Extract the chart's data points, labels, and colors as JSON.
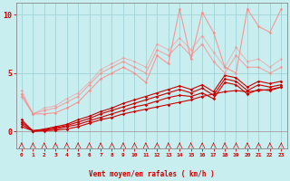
{
  "title": "",
  "xlabel": "Vent moyen/en rafales ( km/h )",
  "background_color": "#c8eef0",
  "grid_color": "#a0d4d8",
  "text_color": "#cc0000",
  "xlim": [
    -0.5,
    23.5
  ],
  "ylim": [
    -1.5,
    11
  ],
  "yticks": [
    0,
    5,
    10
  ],
  "xticks": [
    0,
    1,
    2,
    3,
    4,
    5,
    6,
    7,
    8,
    9,
    10,
    11,
    12,
    13,
    14,
    15,
    16,
    17,
    18,
    19,
    20,
    21,
    22,
    23
  ],
  "lines": [
    {
      "x": [
        0,
        1,
        2,
        3,
        4,
        5,
        6,
        7,
        8,
        9,
        10,
        11,
        12,
        13,
        14,
        15,
        16,
        17,
        18,
        19,
        20,
        21,
        22,
        23
      ],
      "y": [
        1.0,
        0.0,
        0.05,
        0.1,
        0.2,
        0.4,
        0.7,
        1.0,
        1.2,
        1.5,
        1.7,
        1.9,
        2.1,
        2.3,
        2.5,
        2.7,
        3.0,
        3.2,
        3.4,
        3.5,
        3.4,
        3.5,
        3.6,
        3.8
      ],
      "color": "#cc0000",
      "alpha": 1.0,
      "linewidth": 0.8,
      "marker": "D",
      "markersize": 1.8
    },
    {
      "x": [
        0,
        1,
        2,
        3,
        4,
        5,
        6,
        7,
        8,
        9,
        10,
        11,
        12,
        13,
        14,
        15,
        16,
        17,
        18,
        19,
        20,
        21,
        22,
        23
      ],
      "y": [
        0.8,
        0.05,
        0.1,
        0.2,
        0.4,
        0.6,
        0.9,
        1.2,
        1.5,
        1.8,
        2.1,
        2.3,
        2.6,
        2.9,
        3.1,
        3.0,
        3.3,
        2.8,
        4.2,
        4.0,
        3.2,
        3.6,
        3.5,
        3.8
      ],
      "color": "#cc0000",
      "alpha": 1.0,
      "linewidth": 0.8,
      "marker": "D",
      "markersize": 1.8
    },
    {
      "x": [
        0,
        1,
        2,
        3,
        4,
        5,
        6,
        7,
        8,
        9,
        10,
        11,
        12,
        13,
        14,
        15,
        16,
        17,
        18,
        19,
        20,
        21,
        22,
        23
      ],
      "y": [
        0.6,
        0.05,
        0.15,
        0.3,
        0.5,
        0.8,
        1.1,
        1.5,
        1.8,
        2.1,
        2.4,
        2.7,
        3.0,
        3.3,
        3.6,
        3.3,
        3.7,
        3.1,
        4.5,
        4.3,
        3.5,
        4.0,
        3.8,
        4.0
      ],
      "color": "#cc0000",
      "alpha": 1.0,
      "linewidth": 0.8,
      "marker": "D",
      "markersize": 1.8
    },
    {
      "x": [
        0,
        1,
        2,
        3,
        4,
        5,
        6,
        7,
        8,
        9,
        10,
        11,
        12,
        13,
        14,
        15,
        16,
        17,
        18,
        19,
        20,
        21,
        22,
        23
      ],
      "y": [
        0.4,
        0.05,
        0.2,
        0.4,
        0.6,
        1.0,
        1.3,
        1.7,
        2.0,
        2.4,
        2.7,
        3.0,
        3.3,
        3.6,
        3.9,
        3.6,
        4.0,
        3.4,
        4.8,
        4.6,
        3.8,
        4.3,
        4.1,
        4.3
      ],
      "color": "#cc0000",
      "alpha": 1.0,
      "linewidth": 0.8,
      "marker": "D",
      "markersize": 1.8
    },
    {
      "x": [
        0,
        1,
        2,
        3,
        4,
        5,
        6,
        7,
        8,
        9,
        10,
        11,
        12,
        13,
        14,
        15,
        16,
        17,
        18,
        19,
        20,
        21,
        22,
        23
      ],
      "y": [
        3.2,
        1.5,
        1.5,
        1.6,
        2.0,
        2.5,
        3.5,
        4.5,
        5.0,
        5.5,
        5.0,
        4.2,
        6.5,
        5.8,
        10.5,
        6.2,
        10.2,
        8.5,
        5.5,
        5.0,
        10.5,
        9.0,
        8.5,
        10.5
      ],
      "color": "#ff8888",
      "alpha": 0.85,
      "linewidth": 0.8,
      "marker": "D",
      "markersize": 1.8
    },
    {
      "x": [
        0,
        1,
        2,
        3,
        4,
        5,
        6,
        7,
        8,
        9,
        10,
        11,
        12,
        13,
        14,
        15,
        16,
        17,
        18,
        19,
        20,
        21,
        22,
        23
      ],
      "y": [
        3.0,
        1.5,
        1.8,
        2.0,
        2.5,
        3.0,
        4.0,
        5.0,
        5.5,
        6.0,
        5.5,
        5.0,
        7.0,
        6.5,
        7.5,
        6.5,
        7.5,
        6.0,
        5.0,
        6.5,
        5.5,
        5.5,
        5.0,
        5.5
      ],
      "color": "#ff8888",
      "alpha": 0.7,
      "linewidth": 0.8,
      "marker": "D",
      "markersize": 1.8
    },
    {
      "x": [
        0,
        1,
        2,
        3,
        4,
        5,
        6,
        7,
        8,
        9,
        10,
        11,
        12,
        13,
        14,
        15,
        16,
        17,
        18,
        19,
        20,
        21,
        22,
        23
      ],
      "y": [
        3.5,
        1.5,
        2.0,
        2.2,
        2.8,
        3.3,
        4.2,
        5.3,
        5.8,
        6.3,
        6.0,
        5.5,
        7.5,
        7.0,
        8.0,
        7.0,
        8.2,
        6.8,
        5.5,
        7.2,
        6.0,
        6.2,
        5.5,
        6.2
      ],
      "color": "#ff8888",
      "alpha": 0.5,
      "linewidth": 0.8,
      "marker": "D",
      "markersize": 1.8
    }
  ]
}
